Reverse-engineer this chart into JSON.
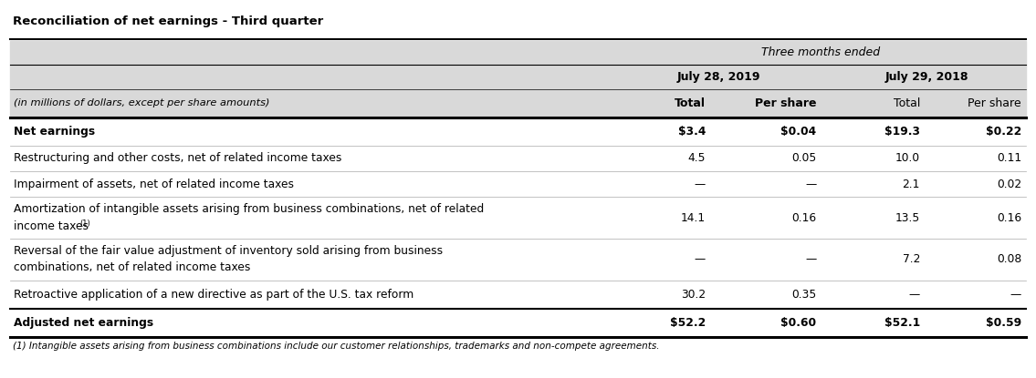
{
  "title": "Reconciliation of net earnings - Third quarter",
  "header_group": "Three months ended",
  "col_headers": [
    "July 28, 2019",
    "July 29, 2018"
  ],
  "sub_headers": [
    "(in millions of dollars, except per share amounts)",
    "Total",
    "Per share",
    "Total",
    "Per share"
  ],
  "rows": [
    {
      "label": "Net earnings",
      "bold": true,
      "values": [
        "$3.4",
        "$0.04",
        "$19.3",
        "$0.22"
      ]
    },
    {
      "label": "Restructuring and other costs, net of related income taxes",
      "bold": false,
      "values": [
        "4.5",
        "0.05",
        "10.0",
        "0.11"
      ]
    },
    {
      "label": "Impairment of assets, net of related income taxes",
      "bold": false,
      "values": [
        "—",
        "—",
        "2.1",
        "0.02"
      ]
    },
    {
      "label": "Amortization of intangible assets arising from business combinations, net of related\nincome taxes¹",
      "bold": false,
      "values": [
        "14.1",
        "0.16",
        "13.5",
        "0.16"
      ]
    },
    {
      "label": "Reversal of the fair value adjustment of inventory sold arising from business\ncombinations, net of related income taxes",
      "bold": false,
      "values": [
        "—",
        "—",
        "7.2",
        "0.08"
      ]
    },
    {
      "label": "Retroactive application of a new directive as part of the U.S. tax reform",
      "bold": false,
      "values": [
        "30.2",
        "0.35",
        "—",
        "—"
      ]
    },
    {
      "label": "Adjusted net earnings",
      "bold": true,
      "values": [
        "$52.2",
        "$0.60",
        "$52.1",
        "$0.59"
      ]
    }
  ],
  "footnote": "(1) Intangible assets arising from business combinations include our customer relationships, trademarks and non-compete agreements.",
  "bg_header_light": "#d9d9d9",
  "bg_white": "#ffffff",
  "text_dark": "#000000",
  "border_color": "#000000"
}
